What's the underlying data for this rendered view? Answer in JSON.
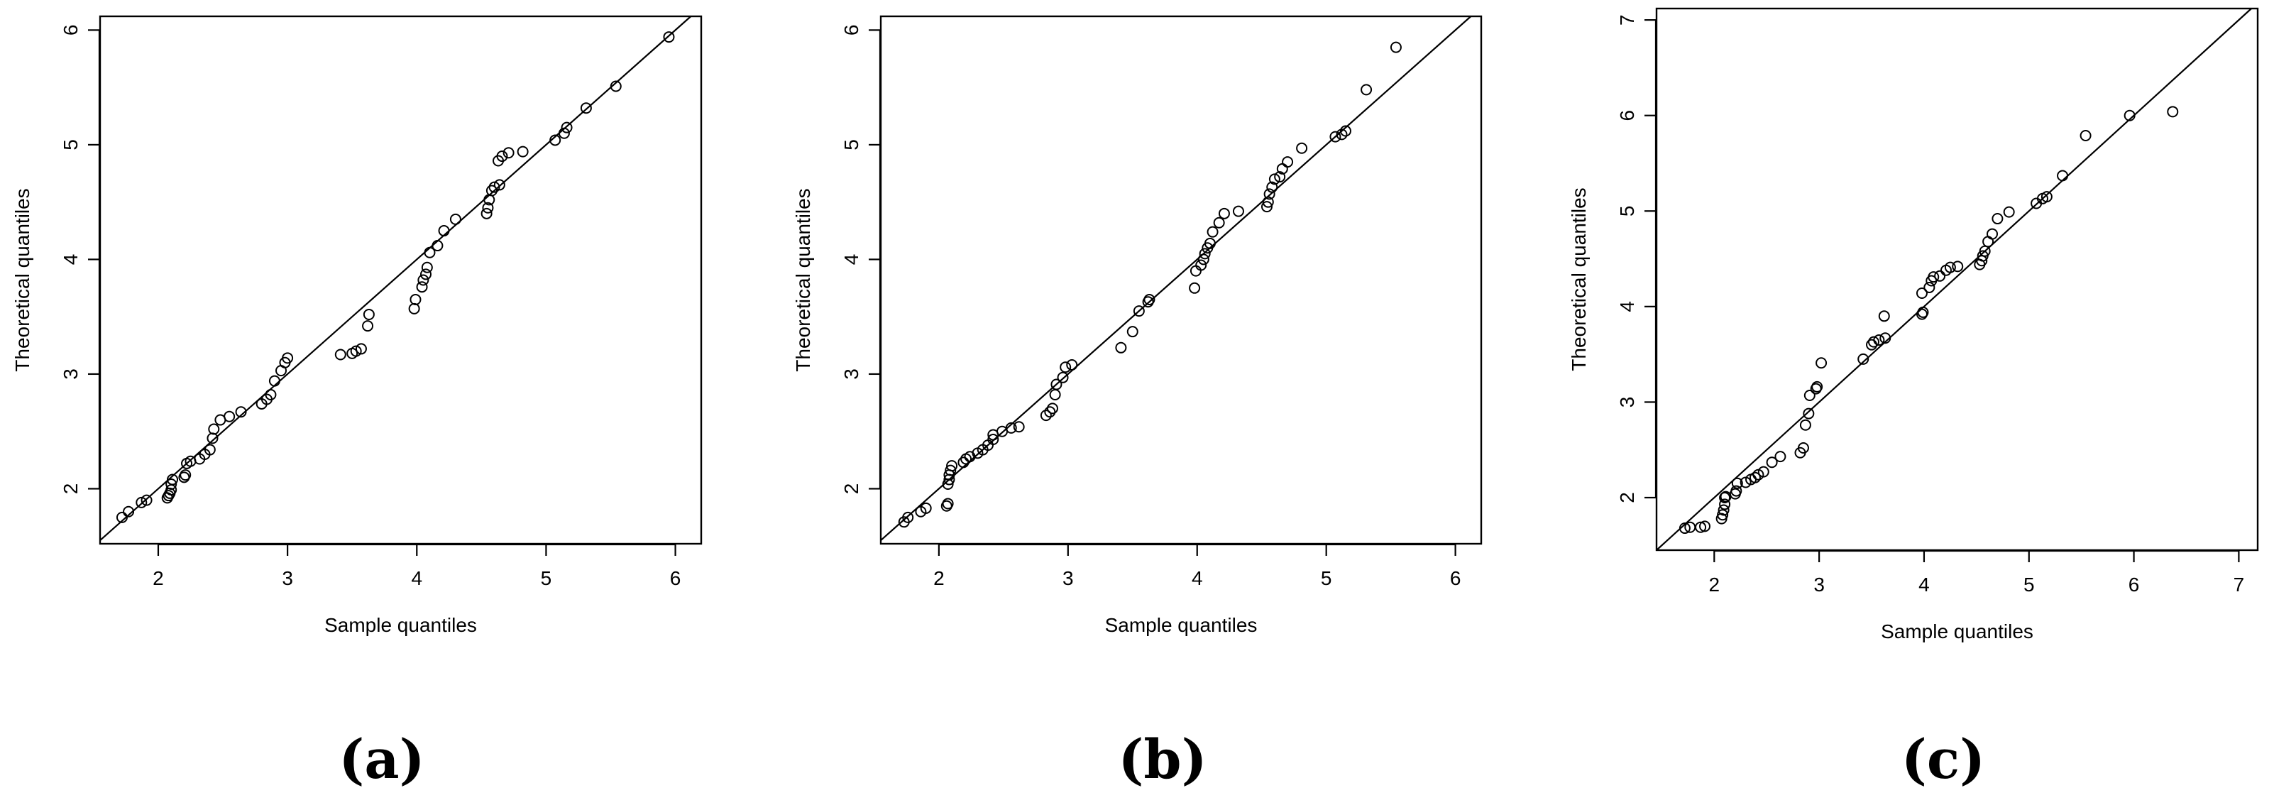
{
  "chart_data": [
    {
      "type": "scatter",
      "panel_label": "(a)",
      "xlabel": "Sample quantiles",
      "ylabel": "Theoretical quantiles",
      "xlim": [
        1.55,
        6.2
      ],
      "ylim": [
        1.52,
        6.12
      ],
      "xticks": [
        2,
        3,
        4,
        5,
        6
      ],
      "yticks": [
        2,
        3,
        4,
        5,
        6
      ],
      "xtick_labels": [
        "2",
        "3",
        "4",
        "5",
        "6"
      ],
      "ytick_labels": [
        "2",
        "3",
        "4",
        "5",
        "6"
      ],
      "reference_line": "y = x",
      "points": [
        [
          1.72,
          1.75
        ],
        [
          1.77,
          1.8
        ],
        [
          1.87,
          1.88
        ],
        [
          1.91,
          1.9
        ],
        [
          2.07,
          1.92
        ],
        [
          2.08,
          1.94
        ],
        [
          2.09,
          1.96
        ],
        [
          2.1,
          1.99
        ],
        [
          2.1,
          2.04
        ],
        [
          2.11,
          2.08
        ],
        [
          2.2,
          2.1
        ],
        [
          2.21,
          2.12
        ],
        [
          2.22,
          2.22
        ],
        [
          2.25,
          2.24
        ],
        [
          2.32,
          2.26
        ],
        [
          2.36,
          2.3
        ],
        [
          2.4,
          2.34
        ],
        [
          2.42,
          2.44
        ],
        [
          2.43,
          2.52
        ],
        [
          2.48,
          2.6
        ],
        [
          2.55,
          2.63
        ],
        [
          2.64,
          2.67
        ],
        [
          2.8,
          2.74
        ],
        [
          2.84,
          2.78
        ],
        [
          2.87,
          2.82
        ],
        [
          2.9,
          2.94
        ],
        [
          2.95,
          3.03
        ],
        [
          2.98,
          3.1
        ],
        [
          3.0,
          3.14
        ],
        [
          3.41,
          3.17
        ],
        [
          3.5,
          3.18
        ],
        [
          3.53,
          3.2
        ],
        [
          3.57,
          3.22
        ],
        [
          3.62,
          3.42
        ],
        [
          3.63,
          3.52
        ],
        [
          3.98,
          3.57
        ],
        [
          3.99,
          3.65
        ],
        [
          4.04,
          3.76
        ],
        [
          4.05,
          3.82
        ],
        [
          4.07,
          3.87
        ],
        [
          4.08,
          3.93
        ],
        [
          4.1,
          4.06
        ],
        [
          4.16,
          4.12
        ],
        [
          4.21,
          4.25
        ],
        [
          4.3,
          4.35
        ],
        [
          4.54,
          4.4
        ],
        [
          4.55,
          4.45
        ],
        [
          4.56,
          4.52
        ],
        [
          4.58,
          4.6
        ],
        [
          4.6,
          4.63
        ],
        [
          4.64,
          4.65
        ],
        [
          4.63,
          4.86
        ],
        [
          4.66,
          4.9
        ],
        [
          4.71,
          4.93
        ],
        [
          4.82,
          4.94
        ],
        [
          5.07,
          5.04
        ],
        [
          5.14,
          5.1
        ],
        [
          5.16,
          5.15
        ],
        [
          5.31,
          5.32
        ],
        [
          5.54,
          5.51
        ],
        [
          5.95,
          5.94
        ]
      ]
    },
    {
      "type": "scatter",
      "panel_label": "(b)",
      "xlabel": "Sample quantiles",
      "ylabel": "Theoretical quantiles",
      "xlim": [
        1.55,
        6.2
      ],
      "ylim": [
        1.52,
        6.12
      ],
      "xticks": [
        2,
        3,
        4,
        5,
        6
      ],
      "yticks": [
        2,
        3,
        4,
        5,
        6
      ],
      "xtick_labels": [
        "2",
        "3",
        "4",
        "5",
        "6"
      ],
      "ytick_labels": [
        "2",
        "3",
        "4",
        "5",
        "6"
      ],
      "reference_line": "y = x",
      "points": [
        [
          1.73,
          1.71
        ],
        [
          1.76,
          1.75
        ],
        [
          1.86,
          1.8
        ],
        [
          1.9,
          1.83
        ],
        [
          2.06,
          1.85
        ],
        [
          2.07,
          1.87
        ],
        [
          2.07,
          2.04
        ],
        [
          2.08,
          2.08
        ],
        [
          2.08,
          2.12
        ],
        [
          2.09,
          2.16
        ],
        [
          2.1,
          2.2
        ],
        [
          2.19,
          2.23
        ],
        [
          2.21,
          2.26
        ],
        [
          2.24,
          2.28
        ],
        [
          2.3,
          2.31
        ],
        [
          2.34,
          2.34
        ],
        [
          2.38,
          2.38
        ],
        [
          2.42,
          2.43
        ],
        [
          2.42,
          2.47
        ],
        [
          2.49,
          2.5
        ],
        [
          2.56,
          2.53
        ],
        [
          2.62,
          2.54
        ],
        [
          2.83,
          2.64
        ],
        [
          2.86,
          2.67
        ],
        [
          2.88,
          2.7
        ],
        [
          2.9,
          2.82
        ],
        [
          2.91,
          2.91
        ],
        [
          2.96,
          2.97
        ],
        [
          2.98,
          3.06
        ],
        [
          3.03,
          3.08
        ],
        [
          3.41,
          3.23
        ],
        [
          3.5,
          3.37
        ],
        [
          3.55,
          3.55
        ],
        [
          3.62,
          3.63
        ],
        [
          3.63,
          3.65
        ],
        [
          3.98,
          3.75
        ],
        [
          3.99,
          3.9
        ],
        [
          4.03,
          3.95
        ],
        [
          4.05,
          4.0
        ],
        [
          4.06,
          4.05
        ],
        [
          4.08,
          4.1
        ],
        [
          4.1,
          4.14
        ],
        [
          4.12,
          4.24
        ],
        [
          4.17,
          4.32
        ],
        [
          4.21,
          4.4
        ],
        [
          4.32,
          4.42
        ],
        [
          4.54,
          4.46
        ],
        [
          4.55,
          4.5
        ],
        [
          4.56,
          4.57
        ],
        [
          4.58,
          4.63
        ],
        [
          4.6,
          4.7
        ],
        [
          4.64,
          4.72
        ],
        [
          4.66,
          4.79
        ],
        [
          4.7,
          4.85
        ],
        [
          4.81,
          4.97
        ],
        [
          5.07,
          5.07
        ],
        [
          5.12,
          5.09
        ],
        [
          5.15,
          5.12
        ],
        [
          5.31,
          5.48
        ],
        [
          5.54,
          5.85
        ]
      ]
    },
    {
      "type": "scatter",
      "panel_label": "(c)",
      "xlabel": "Sample quantiles",
      "ylabel": "Theoretical quantiles",
      "xlim": [
        1.45,
        7.18
      ],
      "ylim": [
        1.45,
        7.12
      ],
      "xticks": [
        2,
        3,
        4,
        5,
        6,
        7
      ],
      "yticks": [
        2,
        3,
        4,
        5,
        6,
        7
      ],
      "xtick_labels": [
        "2",
        "3",
        "4",
        "5",
        "6",
        "7"
      ],
      "ytick_labels": [
        "2",
        "3",
        "4",
        "5",
        "6",
        "7"
      ],
      "reference_line": "y = x",
      "points": [
        [
          1.72,
          1.68
        ],
        [
          1.77,
          1.69
        ],
        [
          1.87,
          1.69
        ],
        [
          1.91,
          1.7
        ],
        [
          2.07,
          1.78
        ],
        [
          2.08,
          1.82
        ],
        [
          2.09,
          1.87
        ],
        [
          2.1,
          1.93
        ],
        [
          2.1,
          2.0
        ],
        [
          2.11,
          2.01
        ],
        [
          2.2,
          2.04
        ],
        [
          2.21,
          2.07
        ],
        [
          2.22,
          2.15
        ],
        [
          2.3,
          2.16
        ],
        [
          2.35,
          2.19
        ],
        [
          2.39,
          2.21
        ],
        [
          2.42,
          2.24
        ],
        [
          2.47,
          2.27
        ],
        [
          2.55,
          2.37
        ],
        [
          2.63,
          2.43
        ],
        [
          2.82,
          2.47
        ],
        [
          2.85,
          2.52
        ],
        [
          2.87,
          2.76
        ],
        [
          2.9,
          2.88
        ],
        [
          2.91,
          3.07
        ],
        [
          2.97,
          3.14
        ],
        [
          2.98,
          3.16
        ],
        [
          3.02,
          3.41
        ],
        [
          3.42,
          3.45
        ],
        [
          3.5,
          3.6
        ],
        [
          3.52,
          3.63
        ],
        [
          3.57,
          3.65
        ],
        [
          3.62,
          3.9
        ],
        [
          3.63,
          3.67
        ],
        [
          3.98,
          3.92
        ],
        [
          3.99,
          3.94
        ],
        [
          3.98,
          4.14
        ],
        [
          4.05,
          4.2
        ],
        [
          4.07,
          4.27
        ],
        [
          4.09,
          4.31
        ],
        [
          4.15,
          4.32
        ],
        [
          4.21,
          4.38
        ],
        [
          4.25,
          4.41
        ],
        [
          4.32,
          4.42
        ],
        [
          4.53,
          4.44
        ],
        [
          4.55,
          4.48
        ],
        [
          4.56,
          4.53
        ],
        [
          4.58,
          4.58
        ],
        [
          4.61,
          4.68
        ],
        [
          4.65,
          4.76
        ],
        [
          4.7,
          4.92
        ],
        [
          4.81,
          4.99
        ],
        [
          5.07,
          5.08
        ],
        [
          5.13,
          5.13
        ],
        [
          5.17,
          5.15
        ],
        [
          5.32,
          5.37
        ],
        [
          5.54,
          5.79
        ],
        [
          5.96,
          6.0
        ],
        [
          6.37,
          6.04
        ]
      ]
    }
  ]
}
